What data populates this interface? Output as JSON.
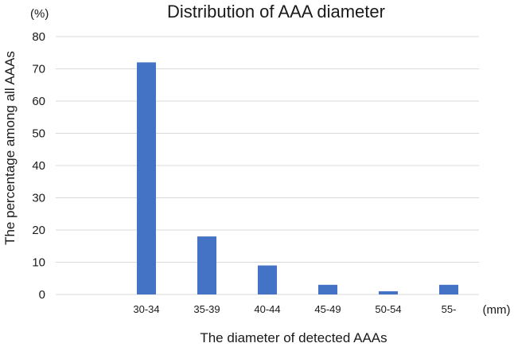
{
  "chart_data": {
    "type": "bar",
    "title": "Distribution of AAA diameter",
    "ylabel": "The percentage among all AAAs",
    "xlabel": "The diameter of detected AAAs",
    "y_unit": "(%)",
    "x_unit": "(mm)",
    "categories": [
      "",
      "30-34",
      "35-39",
      "40-44",
      "45-49",
      "50-54",
      "55-"
    ],
    "values": [
      null,
      72,
      18,
      9,
      3,
      1,
      3
    ],
    "ylim": [
      0,
      80
    ],
    "yticks": [
      0,
      10,
      20,
      30,
      40,
      50,
      60,
      70,
      80
    ],
    "grid": true,
    "legend": "none",
    "colors": {
      "bar": "#4472c4",
      "grid": "#d9d9d9",
      "text": "#1a1a1a"
    }
  }
}
